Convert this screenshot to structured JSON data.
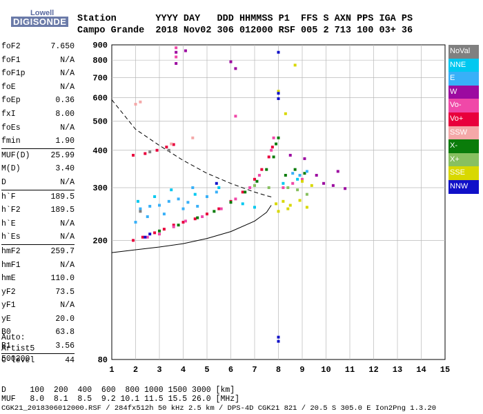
{
  "logo": {
    "brand": "Lowell",
    "product": "DIGISONDE"
  },
  "header": {
    "line1": "Station       YYYY DAY   DDD HHMMSS P1  FFS S AXN PPS IGA PS",
    "line2": "Campo Grande  2018 Nov02 306 012000 RSF 005 2 713 100 03+ 36"
  },
  "params": [
    {
      "key": "foF2",
      "value": "7.650"
    },
    {
      "key": "foF1",
      "value": "N/A"
    },
    {
      "key": "foF1p",
      "value": "N/A"
    },
    {
      "key": "foE",
      "value": "N/A"
    },
    {
      "key": "foEp",
      "value": "0.36"
    },
    {
      "key": "fxI",
      "value": "8.00"
    },
    {
      "key": "foEs",
      "value": "N/A"
    },
    {
      "key": "fmin",
      "value": "1.90"
    },
    {
      "key": "MUF(D)",
      "value": "25.99"
    },
    {
      "key": "M(D)",
      "value": "3.40"
    },
    {
      "key": "D",
      "value": "N/A"
    },
    {
      "key": "h`F",
      "value": "189.5"
    },
    {
      "key": "h`F2",
      "value": "189.5"
    },
    {
      "key": "h`E",
      "value": "N/A"
    },
    {
      "key": "h`Es",
      "value": "N/A"
    },
    {
      "key": "hmF2",
      "value": "259.7"
    },
    {
      "key": "hmF1",
      "value": "N/A"
    },
    {
      "key": "hmE",
      "value": "110.0"
    },
    {
      "key": "yF2",
      "value": "73.5"
    },
    {
      "key": "yF1",
      "value": "N/A"
    },
    {
      "key": "yE",
      "value": "20.0"
    },
    {
      "key": "B0",
      "value": "63.8"
    },
    {
      "key": "B1",
      "value": "3.56"
    },
    {
      "key": "C-level",
      "value": "44"
    }
  ],
  "auto": {
    "line1": "Auto:",
    "line2": "Artist5",
    "line3": "500200"
  },
  "bottom": {
    "line1": "D     100  200  400  600  800 1000 1500 3000 [km]",
    "line2": "MUF   8.0  8.1  8.5  9.2 10.1 11.5 15.5 26.0 [MHz]",
    "line3": "CGK21_2018306012000.RSF / 284fx512h 50 kHz 2.5 km / DPS-4D CGK21 821 / 20.5 S 305.0 E Ion2Png 1.3.20"
  },
  "legend": [
    {
      "label": "NoVal",
      "color": "#808080"
    },
    {
      "label": "NNE",
      "color": "#00c8f0"
    },
    {
      "label": "E",
      "color": "#38b0f8"
    },
    {
      "label": "W",
      "color": "#9c0aa0"
    },
    {
      "label": "Vo-",
      "color": "#f048a8"
    },
    {
      "label": "Vo+",
      "color": "#e8003c"
    },
    {
      "label": "SSW",
      "color": "#f4a8a8"
    },
    {
      "label": "X-",
      "color": "#0a7c0a"
    },
    {
      "label": "X+",
      "color": "#88c060"
    },
    {
      "label": "SSE",
      "color": "#d8d800"
    },
    {
      "label": "NNW",
      "color": "#1010c8"
    }
  ],
  "chart_data": {
    "type": "scatter",
    "title": "",
    "xlabel": "",
    "ylabel": "",
    "xlim": [
      1,
      15
    ],
    "ylim": [
      80,
      900
    ],
    "x_ticks": [
      1,
      2,
      3,
      4,
      5,
      6,
      7,
      8,
      9,
      10,
      11,
      12,
      13,
      14,
      15
    ],
    "y_ticks": [
      80,
      200,
      300,
      400,
      500,
      600,
      700,
      800,
      900
    ],
    "y_scale": "log",
    "grid": true,
    "series": [
      {
        "name": "Vo+",
        "color": "#e8003c",
        "points": [
          [
            1.9,
            200
          ],
          [
            2.3,
            205
          ],
          [
            2.8,
            212
          ],
          [
            3.2,
            218
          ],
          [
            3.6,
            225
          ],
          [
            4.0,
            230
          ],
          [
            4.5,
            236
          ],
          [
            5.0,
            245
          ],
          [
            5.5,
            255
          ],
          [
            6.0,
            270
          ],
          [
            6.5,
            290
          ],
          [
            7.0,
            320
          ],
          [
            7.3,
            345
          ],
          [
            7.6,
            380
          ],
          [
            7.75,
            410
          ],
          [
            1.9,
            385
          ],
          [
            2.4,
            390
          ],
          [
            2.9,
            400
          ],
          [
            3.3,
            410
          ],
          [
            3.6,
            418
          ]
        ]
      },
      {
        "name": "Vo-",
        "color": "#f048a8",
        "points": [
          [
            2.5,
            205
          ],
          [
            3.0,
            210
          ],
          [
            3.6,
            222
          ],
          [
            4.1,
            232
          ],
          [
            4.8,
            240
          ],
          [
            5.6,
            255
          ],
          [
            6.2,
            275
          ],
          [
            6.8,
            300
          ],
          [
            7.2,
            330
          ],
          [
            7.7,
            400
          ],
          [
            7.8,
            440
          ],
          [
            8.2,
            300
          ],
          [
            8.6,
            310
          ],
          [
            9.0,
            320
          ],
          [
            3.7,
            880
          ],
          [
            3.7,
            820
          ],
          [
            6.2,
            520
          ]
        ]
      },
      {
        "name": "X-",
        "color": "#0a7c0a",
        "points": [
          [
            3.0,
            215
          ],
          [
            3.8,
            225
          ],
          [
            4.6,
            238
          ],
          [
            5.3,
            250
          ],
          [
            6.0,
            268
          ],
          [
            6.6,
            290
          ],
          [
            7.1,
            315
          ],
          [
            7.5,
            345
          ],
          [
            7.8,
            380
          ],
          [
            7.9,
            420
          ],
          [
            8.0,
            440
          ],
          [
            8.3,
            330
          ],
          [
            8.7,
            345
          ],
          [
            9.1,
            335
          ]
        ]
      },
      {
        "name": "E",
        "color": "#38b0f8",
        "points": [
          [
            2.2,
            255
          ],
          [
            2.6,
            260
          ],
          [
            3.0,
            262
          ],
          [
            3.4,
            270
          ],
          [
            3.8,
            275
          ],
          [
            4.2,
            268
          ],
          [
            4.6,
            260
          ],
          [
            5.0,
            280
          ],
          [
            5.4,
            290
          ],
          [
            2.0,
            230
          ],
          [
            2.5,
            240
          ],
          [
            3.2,
            245
          ],
          [
            4.0,
            255
          ],
          [
            4.4,
            300
          ],
          [
            8.6,
            335
          ],
          [
            8.9,
            330
          ],
          [
            9.2,
            340
          ]
        ]
      },
      {
        "name": "NNE",
        "color": "#00c8f0",
        "points": [
          [
            2.1,
            270
          ],
          [
            2.8,
            280
          ],
          [
            3.5,
            295
          ],
          [
            4.5,
            285
          ],
          [
            5.5,
            300
          ],
          [
            6.5,
            265
          ],
          [
            7.0,
            258
          ],
          [
            8.2,
            310
          ],
          [
            8.8,
            320
          ]
        ]
      },
      {
        "name": "W",
        "color": "#9c0aa0",
        "points": [
          [
            3.7,
            850
          ],
          [
            3.7,
            780
          ],
          [
            4.1,
            860
          ],
          [
            6.0,
            790
          ],
          [
            6.2,
            750
          ],
          [
            9.6,
            330
          ],
          [
            9.9,
            310
          ],
          [
            10.3,
            305
          ],
          [
            10.8,
            298
          ],
          [
            10.5,
            340
          ],
          [
            8.5,
            385
          ],
          [
            9.1,
            375
          ]
        ]
      },
      {
        "name": "SSE",
        "color": "#d8d800",
        "points": [
          [
            7.9,
            265
          ],
          [
            8.2,
            270
          ],
          [
            8.5,
            262
          ],
          [
            8.9,
            272
          ],
          [
            9.2,
            258
          ],
          [
            8.4,
            255
          ],
          [
            8.0,
            250
          ],
          [
            9.4,
            305
          ],
          [
            9.0,
            315
          ],
          [
            8.3,
            530
          ],
          [
            8.7,
            770
          ],
          [
            8.0,
            630
          ]
        ]
      },
      {
        "name": "X+",
        "color": "#88c060",
        "points": [
          [
            8.4,
            300
          ],
          [
            8.8,
            295
          ],
          [
            9.2,
            285
          ],
          [
            7.6,
            300
          ],
          [
            7.0,
            305
          ]
        ]
      },
      {
        "name": "NNW",
        "color": "#1010c8",
        "points": [
          [
            8.0,
            850
          ],
          [
            8.0,
            595
          ],
          [
            8.0,
            620
          ],
          [
            8.0,
            95
          ],
          [
            8.0,
            92
          ],
          [
            2.4,
            205
          ],
          [
            2.6,
            210
          ],
          [
            5.4,
            310
          ]
        ]
      },
      {
        "name": "NoVal",
        "color": "#808080",
        "points": [
          [
            2.6,
            395
          ],
          [
            2.2,
            250
          ],
          [
            3.4,
            400
          ]
        ]
      },
      {
        "name": "SSW",
        "color": "#f4a8a8",
        "points": [
          [
            2.0,
            570
          ],
          [
            2.2,
            580
          ],
          [
            3.5,
            420
          ],
          [
            4.4,
            440
          ]
        ]
      }
    ],
    "curves": [
      {
        "style": "dashed",
        "points": [
          [
            1,
            590
          ],
          [
            2,
            470
          ],
          [
            3,
            415
          ],
          [
            4,
            370
          ],
          [
            5,
            335
          ],
          [
            6,
            310
          ],
          [
            7,
            290
          ],
          [
            7.5,
            282
          ],
          [
            7.8,
            278
          ]
        ]
      },
      {
        "style": "solid",
        "points": [
          [
            1,
            182
          ],
          [
            2,
            186
          ],
          [
            3,
            190
          ],
          [
            4,
            195
          ],
          [
            5,
            203
          ],
          [
            6,
            214
          ],
          [
            7,
            232
          ],
          [
            7.5,
            248
          ],
          [
            7.7,
            262
          ]
        ]
      }
    ]
  }
}
